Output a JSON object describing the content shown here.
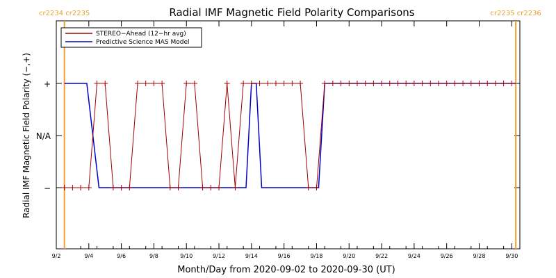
{
  "chart_data": {
    "type": "line",
    "title": "Radial IMF Magnetic Field Polarity Comparisons",
    "xlabel": "Month/Day from 2020-09-02 to 2020-09-30 (UT)",
    "ylabel": "Radial IMF Magnetic Field Polarity (−,+)",
    "xlim": [
      "2020-09-02T00:00",
      "2020-09-30T12:00"
    ],
    "x_ticks": [
      "9/2",
      "9/4",
      "9/6",
      "9/8",
      "9/10",
      "9/12",
      "9/14",
      "9/16",
      "9/18",
      "9/20",
      "9/22",
      "9/24",
      "9/26",
      "9/28",
      "9/30"
    ],
    "y_categories": [
      "−",
      "N/A",
      "+"
    ],
    "grid": false,
    "legend_position": "top-left",
    "carrington_markers": [
      {
        "x": "2020-09-02T12:00",
        "labels": [
          "cr2234",
          "cr2235"
        ],
        "color": "#f0a030"
      },
      {
        "x": "2020-09-30T06:00",
        "labels": [
          "cr2235",
          "cr2236"
        ],
        "color": "#f0a030"
      }
    ],
    "series": [
      {
        "name": "STEREO−Ahead (12−hr avg)",
        "color": "#a00000",
        "marker": "+",
        "x": [
          "2020-09-02T12:00",
          "2020-09-03T00:00",
          "2020-09-03T12:00",
          "2020-09-04T00:00",
          "2020-09-04T12:00",
          "2020-09-05T00:00",
          "2020-09-05T12:00",
          "2020-09-06T00:00",
          "2020-09-06T12:00",
          "2020-09-07T00:00",
          "2020-09-07T12:00",
          "2020-09-08T00:00",
          "2020-09-08T12:00",
          "2020-09-09T00:00",
          "2020-09-09T12:00",
          "2020-09-10T00:00",
          "2020-09-10T12:00",
          "2020-09-11T00:00",
          "2020-09-11T12:00",
          "2020-09-12T00:00",
          "2020-09-12T12:00",
          "2020-09-13T00:00",
          "2020-09-13T12:00",
          "2020-09-14T00:00",
          "2020-09-14T12:00",
          "2020-09-15T00:00",
          "2020-09-15T12:00",
          "2020-09-16T00:00",
          "2020-09-16T12:00",
          "2020-09-17T00:00",
          "2020-09-17T12:00",
          "2020-09-18T00:00",
          "2020-09-18T12:00",
          "2020-09-19T00:00",
          "2020-09-19T12:00",
          "2020-09-20T00:00",
          "2020-09-20T12:00",
          "2020-09-21T00:00",
          "2020-09-21T12:00",
          "2020-09-22T00:00",
          "2020-09-22T12:00",
          "2020-09-23T00:00",
          "2020-09-23T12:00",
          "2020-09-24T00:00",
          "2020-09-24T12:00",
          "2020-09-25T00:00",
          "2020-09-25T12:00",
          "2020-09-26T00:00",
          "2020-09-26T12:00",
          "2020-09-27T00:00",
          "2020-09-27T12:00",
          "2020-09-28T00:00",
          "2020-09-28T12:00",
          "2020-09-29T00:00",
          "2020-09-29T12:00",
          "2020-09-30T00:00"
        ],
        "y": [
          "-",
          "-",
          "-",
          "-",
          "+",
          "+",
          "-",
          "-",
          "-",
          "+",
          "+",
          "+",
          "+",
          "-",
          "-",
          "+",
          "+",
          "-",
          "-",
          "-",
          "+",
          "-",
          "+",
          "+",
          "+",
          "+",
          "+",
          "+",
          "+",
          "+",
          "-",
          "-",
          "+",
          "+",
          "+",
          "+",
          "+",
          "+",
          "+",
          "+",
          "+",
          "+",
          "+",
          "+",
          "+",
          "+",
          "+",
          "+",
          "+",
          "+",
          "+",
          "+",
          "+",
          "+",
          "+",
          "+"
        ]
      },
      {
        "name": "Predictive Science MAS Model",
        "color": "#0000c8",
        "steps": [
          {
            "x": "2020-09-02T12:00",
            "y": "+"
          },
          {
            "x": "2020-09-03T21:00",
            "y": "+"
          },
          {
            "x": "2020-09-04T15:00",
            "y": "-"
          },
          {
            "x": "2020-09-13T16:00",
            "y": "-"
          },
          {
            "x": "2020-09-14T00:00",
            "y": "+"
          },
          {
            "x": "2020-09-14T07:00",
            "y": "+"
          },
          {
            "x": "2020-09-14T15:00",
            "y": "-"
          },
          {
            "x": "2020-09-18T03:00",
            "y": "-"
          },
          {
            "x": "2020-09-18T12:00",
            "y": "+"
          },
          {
            "x": "2020-09-30T06:00",
            "y": "+"
          }
        ]
      }
    ]
  }
}
